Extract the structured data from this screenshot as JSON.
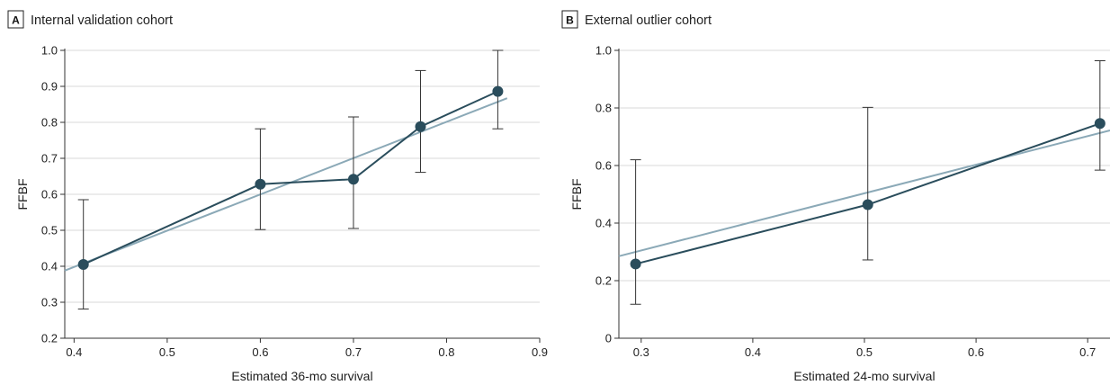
{
  "colors": {
    "observed": "#2a4d5c",
    "fit": "#8ba9b7",
    "grid": "#d9d9d9",
    "axis": "#333333",
    "error_bar": "#333333"
  },
  "chart_data": [
    {
      "type": "line",
      "panel_label": "A",
      "title": "Internal validation cohort",
      "xlabel": "Estimated 36-mo survival",
      "ylabel": "FFBF",
      "xlim": [
        0.39,
        0.9
      ],
      "ylim": [
        0.2,
        1.0
      ],
      "xticks": [
        0.4,
        0.5,
        0.6,
        0.7,
        0.8,
        0.9
      ],
      "yticks": [
        0.2,
        0.3,
        0.4,
        0.5,
        0.6,
        0.7,
        0.8,
        0.9,
        1.0
      ],
      "grid": "horizontal",
      "series": [
        {
          "x": [
            0.41,
            0.6,
            0.7,
            0.772,
            0.855
          ],
          "y": [
            0.405,
            0.628,
            0.642,
            0.788,
            0.886
          ],
          "lower": [
            0.281,
            0.502,
            0.505,
            0.661,
            0.782
          ],
          "upper": [
            0.585,
            0.782,
            0.815,
            0.944,
            1.0
          ]
        }
      ],
      "fit_line": {
        "x": [
          0.39,
          0.865
        ],
        "y": [
          0.388,
          0.867
        ]
      }
    },
    {
      "type": "line",
      "panel_label": "B",
      "title": "External outlier cohort",
      "xlabel": "Estimated 24-mo survival",
      "ylabel": "FFBF",
      "xlim": [
        0.28,
        0.72
      ],
      "ylim": [
        0,
        1.0
      ],
      "xticks": [
        0.3,
        0.4,
        0.5,
        0.6,
        0.7
      ],
      "yticks": [
        0,
        0.2,
        0.4,
        0.6,
        0.8,
        1.0
      ],
      "grid": "horizontal",
      "series": [
        {
          "x": [
            0.295,
            0.503,
            0.711
          ],
          "y": [
            0.258,
            0.464,
            0.746
          ],
          "lower": [
            0.118,
            0.272,
            0.584
          ],
          "upper": [
            0.62,
            0.802,
            0.964
          ]
        }
      ],
      "fit_line": {
        "x": [
          0.28,
          0.72
        ],
        "y": [
          0.285,
          0.722
        ]
      }
    }
  ]
}
